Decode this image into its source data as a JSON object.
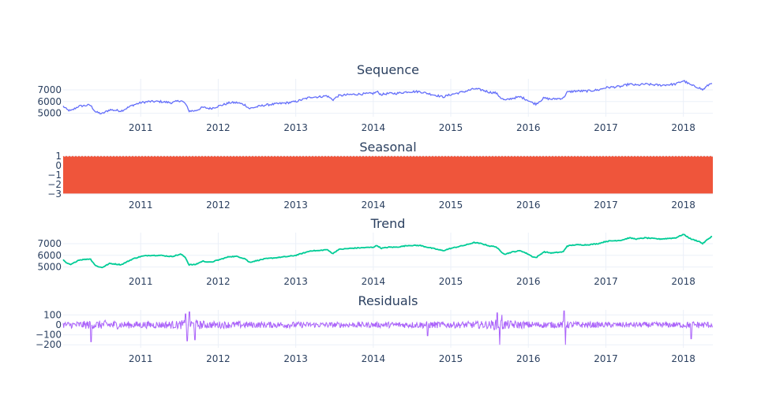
{
  "chart_data": [
    {
      "type": "line",
      "title": "Sequence",
      "color": "#636efa",
      "x_ticks": [
        "2011",
        "2012",
        "2013",
        "2014",
        "2015",
        "2016",
        "2017",
        "2018"
      ],
      "y_ticks": [
        "5000",
        "6000",
        "7000"
      ],
      "ylim": [
        4700,
        7950
      ],
      "series": [
        {
          "x": [
            2010.0,
            2010.05,
            2010.1,
            2010.2,
            2010.35,
            2010.42,
            2010.5,
            2010.6,
            2010.75,
            2010.9,
            2011.0,
            2011.1,
            2011.25,
            2011.4,
            2011.52,
            2011.58,
            2011.62,
            2011.7,
            2011.8,
            2011.9,
            2012.0,
            2012.15,
            2012.25,
            2012.35,
            2012.4,
            2012.6,
            2012.75,
            2012.9,
            2013.0,
            2013.1,
            2013.2,
            2013.3,
            2013.4,
            2013.48,
            2013.55,
            2013.7,
            2013.85,
            2014.0,
            2014.05,
            2014.1,
            2014.2,
            2014.3,
            2014.45,
            2014.6,
            2014.7,
            2014.8,
            2014.9,
            2015.0,
            2015.2,
            2015.25,
            2015.3,
            2015.4,
            2015.5,
            2015.58,
            2015.65,
            2015.7,
            2015.8,
            2015.9,
            2016.0,
            2016.05,
            2016.1,
            2016.2,
            2016.3,
            2016.45,
            2016.5,
            2016.6,
            2016.75,
            2016.9,
            2017.0,
            2017.2,
            2017.3,
            2017.4,
            2017.5,
            2017.7,
            2017.9,
            2018.0,
            2018.05,
            2018.1,
            2018.2,
            2018.25,
            2018.3,
            2018.38
          ],
          "y": [
            5600,
            5300,
            5200,
            5600,
            5700,
            5100,
            4950,
            5300,
            5200,
            5700,
            5900,
            6000,
            6000,
            5900,
            6100,
            5800,
            5200,
            5200,
            5500,
            5400,
            5600,
            5900,
            5900,
            5700,
            5400,
            5700,
            5800,
            5900,
            6000,
            6200,
            6400,
            6400,
            6500,
            6150,
            6500,
            6600,
            6650,
            6700,
            6850,
            6600,
            6700,
            6700,
            6850,
            6850,
            6700,
            6550,
            6400,
            6600,
            6900,
            7000,
            7100,
            7000,
            6800,
            6750,
            6300,
            6100,
            6300,
            6400,
            6100,
            5900,
            5800,
            6300,
            6200,
            6300,
            6800,
            6900,
            6900,
            7000,
            7200,
            7300,
            7500,
            7400,
            7500,
            7400,
            7500,
            7800,
            7600,
            7400,
            7200,
            7000,
            7300,
            7700
          ]
        }
      ]
    },
    {
      "type": "line",
      "title": "Seasonal",
      "color": "#ef553b",
      "x_ticks": [
        "2011",
        "2012",
        "2013",
        "2014",
        "2015",
        "2016",
        "2017",
        "2018"
      ],
      "y_ticks": [
        "1",
        "0",
        "−1",
        "−2",
        "−3"
      ],
      "ylim": [
        -3,
        1
      ],
      "series": [
        {
          "x": [
            2010.0,
            2018.38
          ],
          "band": [
            -2.95,
            0.95
          ]
        }
      ]
    },
    {
      "type": "line",
      "title": "Trend",
      "color": "#00cc96",
      "x_ticks": [
        "2011",
        "2012",
        "2013",
        "2014",
        "2015",
        "2016",
        "2017",
        "2018"
      ],
      "y_ticks": [
        "5000",
        "6000",
        "7000"
      ],
      "ylim": [
        4700,
        7950
      ],
      "series": [
        {
          "x": [
            2010.0,
            2010.05,
            2010.1,
            2010.2,
            2010.35,
            2010.42,
            2010.5,
            2010.6,
            2010.75,
            2010.9,
            2011.0,
            2011.1,
            2011.25,
            2011.4,
            2011.52,
            2011.58,
            2011.62,
            2011.7,
            2011.8,
            2011.9,
            2012.0,
            2012.15,
            2012.25,
            2012.35,
            2012.4,
            2012.6,
            2012.75,
            2012.9,
            2013.0,
            2013.1,
            2013.2,
            2013.3,
            2013.4,
            2013.48,
            2013.55,
            2013.7,
            2013.85,
            2014.0,
            2014.05,
            2014.1,
            2014.2,
            2014.3,
            2014.45,
            2014.6,
            2014.7,
            2014.8,
            2014.9,
            2015.0,
            2015.2,
            2015.25,
            2015.3,
            2015.4,
            2015.5,
            2015.58,
            2015.65,
            2015.7,
            2015.8,
            2015.9,
            2016.0,
            2016.05,
            2016.1,
            2016.2,
            2016.3,
            2016.45,
            2016.5,
            2016.6,
            2016.75,
            2016.9,
            2017.0,
            2017.2,
            2017.3,
            2017.4,
            2017.5,
            2017.7,
            2017.9,
            2018.0,
            2018.05,
            2018.1,
            2018.2,
            2018.25,
            2018.3,
            2018.38
          ],
          "y": [
            5600,
            5300,
            5200,
            5600,
            5700,
            5100,
            4950,
            5300,
            5200,
            5700,
            5900,
            6000,
            6000,
            5900,
            6100,
            5800,
            5200,
            5200,
            5500,
            5400,
            5600,
            5900,
            5900,
            5700,
            5400,
            5700,
            5800,
            5900,
            6000,
            6200,
            6400,
            6400,
            6500,
            6150,
            6500,
            6600,
            6650,
            6700,
            6850,
            6600,
            6700,
            6700,
            6850,
            6850,
            6700,
            6550,
            6400,
            6600,
            6900,
            7000,
            7100,
            7000,
            6800,
            6750,
            6300,
            6100,
            6300,
            6400,
            6100,
            5900,
            5800,
            6300,
            6200,
            6300,
            6800,
            6900,
            6900,
            7000,
            7200,
            7300,
            7500,
            7400,
            7500,
            7400,
            7500,
            7800,
            7600,
            7400,
            7200,
            7000,
            7300,
            7700
          ]
        }
      ]
    },
    {
      "type": "line",
      "title": "Residuals",
      "color": "#ab63fa",
      "x_ticks": [
        "2011",
        "2012",
        "2013",
        "2014",
        "2015",
        "2016",
        "2017",
        "2018"
      ],
      "y_ticks": [
        "100",
        "0",
        "−100",
        "−200"
      ],
      "ylim": [
        -230,
        150
      ],
      "series": [
        {
          "x": [
            2010.0,
            2010.2,
            2010.36,
            2010.4,
            2010.6,
            2010.8,
            2011.0,
            2011.25,
            2011.5,
            2011.58,
            2011.6,
            2011.63,
            2011.68,
            2011.7,
            2011.72,
            2011.9,
            2012.25,
            2012.5,
            2012.9,
            2013.25,
            2013.5,
            2013.75,
            2014.0,
            2014.5,
            2014.7,
            2014.73,
            2014.76,
            2015.0,
            2015.3,
            2015.5,
            2015.6,
            2015.63,
            2015.66,
            2015.75,
            2016.0,
            2016.25,
            2016.4,
            2016.46,
            2016.48,
            2016.5,
            2016.7,
            2017.0,
            2017.25,
            2017.5,
            2017.75,
            2018.0,
            2018.1,
            2018.2,
            2018.38
          ],
          "y": [
            50,
            45,
            -170,
            80,
            70,
            60,
            60,
            65,
            60,
            110,
            -160,
            130,
            90,
            -150,
            80,
            55,
            50,
            50,
            45,
            40,
            40,
            35,
            40,
            50,
            -110,
            90,
            55,
            50,
            55,
            60,
            120,
            -200,
            100,
            60,
            50,
            50,
            50,
            140,
            -200,
            70,
            50,
            40,
            40,
            40,
            40,
            50,
            -140,
            70,
            50
          ],
          "amplitude": [
            40,
            45,
            55,
            50,
            60,
            45,
            45,
            45,
            50,
            70,
            70,
            70,
            70,
            70,
            60,
            45,
            45,
            40,
            40,
            35,
            35,
            35,
            35,
            40,
            45,
            45,
            45,
            40,
            45,
            50,
            70,
            70,
            70,
            55,
            45,
            40,
            40,
            45,
            45,
            45,
            40,
            35,
            35,
            35,
            35,
            40,
            45,
            45,
            40
          ]
        }
      ]
    }
  ]
}
